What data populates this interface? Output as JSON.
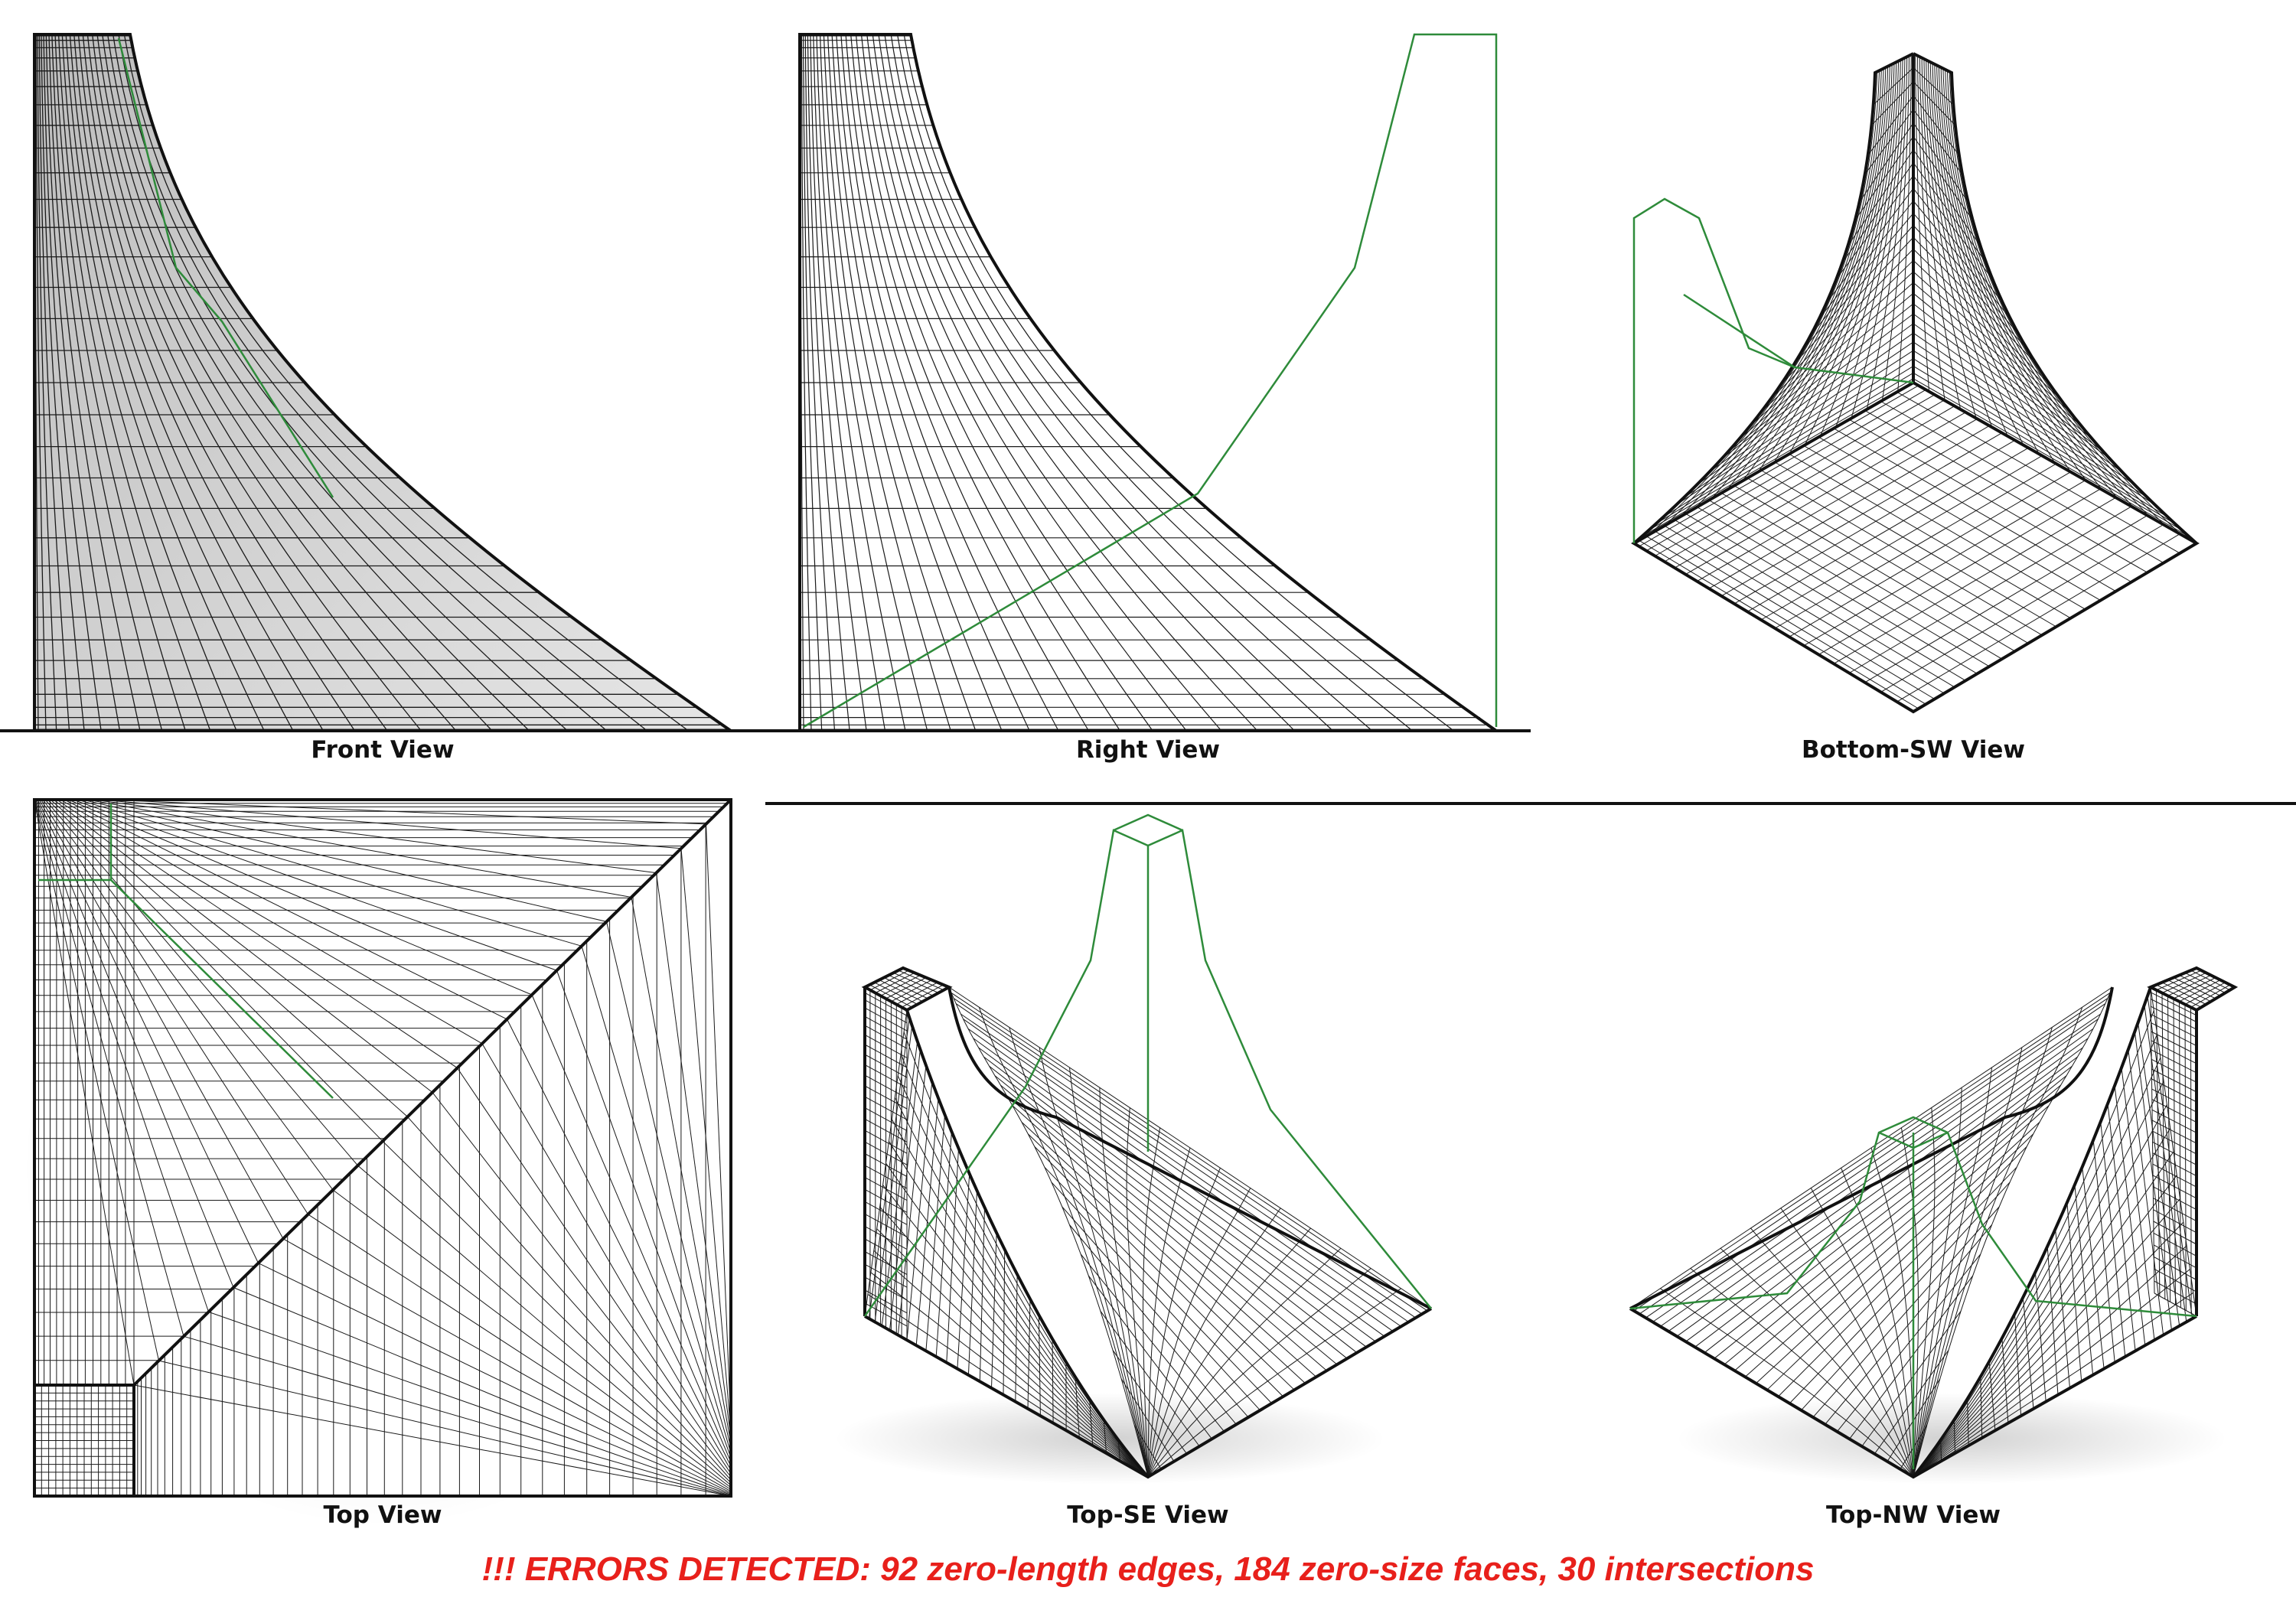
{
  "views": {
    "front": {
      "label": "Front View"
    },
    "right": {
      "label": "Right View"
    },
    "bottom_sw": {
      "label": "Bottom-SW View"
    },
    "top": {
      "label": "Top View"
    },
    "top_se": {
      "label": "Top-SE View"
    },
    "top_nw": {
      "label": "Top-NW View"
    }
  },
  "error_banner": {
    "text": "!!! ERRORS DETECTED: 92 zero-length edges, 184 zero-size faces, 30 intersections",
    "color": "#e8201b"
  },
  "colors": {
    "mesh_line": "#1a1a1a",
    "outline": "#111111",
    "path_line": "#2e8b3a",
    "front_fill": "#cfcfcf"
  }
}
